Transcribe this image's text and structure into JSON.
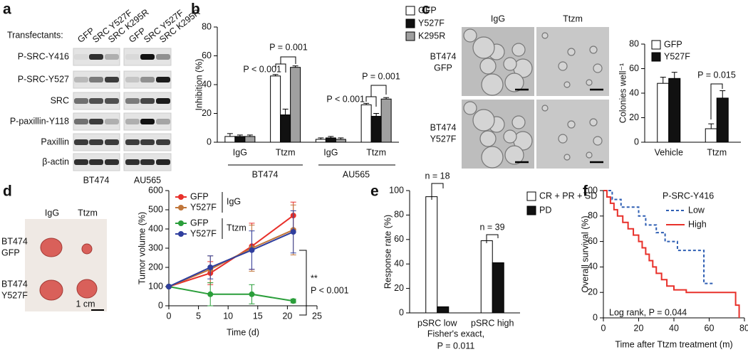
{
  "panels": [
    "a",
    "b",
    "c",
    "d",
    "e",
    "f"
  ],
  "blot": {
    "header": "Transfectants:",
    "lane_labels": [
      "GFP",
      "SRC Y527F",
      "SRC K295R",
      "GFP",
      "SRC Y527F",
      "SRC K295R"
    ],
    "rows": [
      "P-SRC-Y416",
      "P-SRC-Y527",
      "SRC",
      "P-paxillin-Y118",
      "Paxillin",
      "β-actin"
    ],
    "cell_lines": [
      "BT474",
      "AU565"
    ]
  },
  "colony_images": {
    "columns": [
      "IgG",
      "Ttzm"
    ],
    "rows": [
      [
        "BT474",
        "GFP"
      ],
      [
        "BT474",
        "Y527F"
      ]
    ]
  },
  "tumor_photo": {
    "columns": [
      "IgG",
      "Ttzm"
    ],
    "rows": [
      [
        "BT474",
        "GFP"
      ],
      [
        "BT474",
        "Y527F"
      ]
    ],
    "scale": "1 cm"
  },
  "chart_data": [
    {
      "type": "bar",
      "y_label": "Inhibition (%)",
      "categories": [
        "IgG",
        "Ttzm",
        "IgG",
        "Ttzm"
      ],
      "groups": [
        "BT474",
        "AU565"
      ],
      "series": [
        {
          "name": "GFP",
          "color": "#ffffff",
          "values": [
            4,
            46,
            2,
            26
          ],
          "errors": [
            2,
            1,
            1,
            1
          ]
        },
        {
          "name": "Y527F",
          "color": "#111111",
          "values": [
            4,
            19,
            3,
            18
          ],
          "errors": [
            1,
            4,
            1,
            2
          ]
        },
        {
          "name": "K295R",
          "color": "#a0a0a0",
          "values": [
            4,
            52,
            2,
            30
          ],
          "errors": [
            1,
            1,
            1,
            1
          ]
        }
      ],
      "ylim": [
        0,
        80
      ],
      "yticks": [
        0,
        20,
        40,
        60,
        80
      ],
      "annotations": [
        "P < 0.001",
        "P = 0.001",
        "P < 0.001",
        "P = 0.001"
      ]
    },
    {
      "type": "bar",
      "y_label": "Colonies well⁻¹",
      "categories": [
        "Vehicle",
        "Ttzm"
      ],
      "series": [
        {
          "name": "GFP",
          "color": "#ffffff",
          "values": [
            48,
            11
          ],
          "errors": [
            5,
            4
          ]
        },
        {
          "name": "Y527F",
          "color": "#111111",
          "values": [
            52,
            36
          ],
          "errors": [
            5,
            6
          ]
        }
      ],
      "ylim": [
        0,
        80
      ],
      "yticks": [
        0,
        20,
        40,
        60,
        80
      ],
      "annotations": [
        "P = 0.015"
      ]
    },
    {
      "type": "line",
      "x_label": "Time (d)",
      "y_label": "Tumor volume (%)",
      "x": [
        0,
        7,
        14,
        21
      ],
      "markers": true,
      "series": [
        {
          "name": "GFP",
          "color": "#e8302a",
          "values": [
            100,
            170,
            310,
            470
          ],
          "errors": [
            0,
            60,
            120,
            70
          ]
        },
        {
          "name": "Y527F",
          "color": "#c0763a",
          "values": [
            100,
            190,
            300,
            395
          ],
          "errors": [
            0,
            70,
            120,
            130
          ]
        },
        {
          "name": "GFP",
          "color": "#2a9e3a",
          "values": [
            100,
            60,
            60,
            25
          ],
          "errors": [
            0,
            60,
            50,
            10
          ]
        },
        {
          "name": "Y527F",
          "color": "#2f3e9e",
          "values": [
            100,
            200,
            290,
            385
          ],
          "errors": [
            0,
            60,
            100,
            110
          ]
        }
      ],
      "legend_groups": [
        "IgG",
        "Ttzm"
      ],
      "xlim": [
        0,
        25
      ],
      "xticks": [
        0,
        5,
        10,
        15,
        20,
        25
      ],
      "ylim": [
        0,
        600
      ],
      "yticks": [
        0,
        100,
        200,
        300,
        400,
        500,
        600
      ],
      "annotations": [
        "**",
        "P < 0.001"
      ]
    },
    {
      "type": "bar",
      "y_label": "Response rate (%)",
      "categories": [
        "pSRC low",
        "pSRC high"
      ],
      "series": [
        {
          "name": "CR + PR + SD",
          "color": "#ffffff",
          "values": [
            95,
            59
          ]
        },
        {
          "name": "PD",
          "color": "#111111",
          "values": [
            5,
            41
          ]
        }
      ],
      "ylim": [
        0,
        100
      ],
      "yticks": [
        0,
        20,
        40,
        60,
        80,
        100
      ],
      "annotations": [
        "n = 18",
        "n = 39",
        "Fisher's exact,",
        "P = 0.011"
      ]
    },
    {
      "type": "line",
      "x_label": "Time after Ttzm treatment (m)",
      "y_label": "Overall survival (%)",
      "legend_title": "P-SRC-Y416",
      "series": [
        {
          "name": "Low",
          "color": "#2f5fb3",
          "line_style": "dashed",
          "x": [
            0,
            5,
            5,
            10,
            10,
            20,
            20,
            24,
            24,
            30,
            30,
            35,
            35,
            42,
            42,
            57,
            57,
            62
          ],
          "values": [
            100,
            100,
            93,
            93,
            87,
            87,
            80,
            80,
            73,
            73,
            67,
            67,
            60,
            60,
            53,
            53,
            27,
            27
          ]
        },
        {
          "name": "High",
          "color": "#e8302a",
          "line_style": "solid",
          "x": [
            0,
            2,
            2,
            4,
            4,
            6,
            6,
            8,
            8,
            11,
            11,
            14,
            14,
            17,
            17,
            20,
            20,
            22,
            22,
            24,
            24,
            26,
            26,
            28,
            28,
            30,
            30,
            33,
            33,
            36,
            36,
            40,
            40,
            47,
            47,
            75,
            75,
            77,
            77
          ],
          "values": [
            100,
            100,
            95,
            95,
            90,
            90,
            85,
            85,
            80,
            80,
            75,
            75,
            70,
            70,
            65,
            65,
            60,
            60,
            55,
            55,
            50,
            50,
            45,
            45,
            40,
            40,
            35,
            35,
            30,
            30,
            25,
            25,
            22,
            22,
            20,
            20,
            10,
            10,
            0
          ]
        }
      ],
      "xlim": [
        0,
        80
      ],
      "xticks": [
        0,
        20,
        40,
        60,
        80
      ],
      "ylim": [
        0,
        100
      ],
      "yticks": [
        0,
        20,
        40,
        60,
        80,
        100
      ],
      "annotations": [
        "Log rank, P = 0.044"
      ]
    }
  ]
}
